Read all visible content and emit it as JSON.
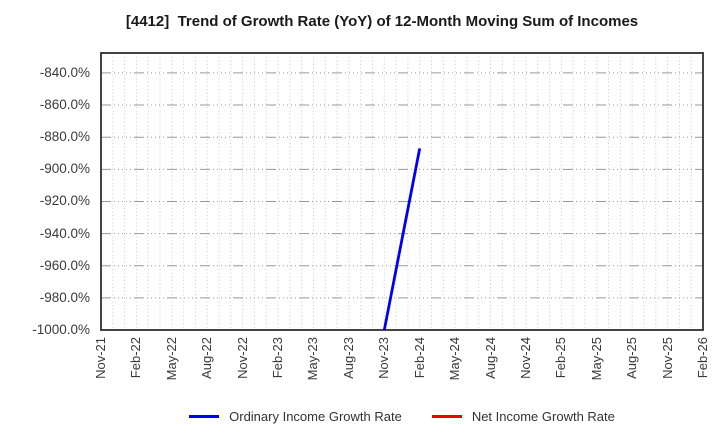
{
  "title": "[4412]  Trend of Growth Rate (YoY) of 12-Month Moving Sum of Incomes",
  "chart_data": {
    "type": "line",
    "title": "[4412]  Trend of Growth Rate (YoY) of 12-Month Moving Sum of Incomes",
    "xlabel": "",
    "ylabel": "",
    "x_range": [
      "Nov-21",
      "Feb-26"
    ],
    "x_ticks": [
      "Nov-21",
      "Feb-22",
      "May-22",
      "Aug-22",
      "Nov-22",
      "Feb-23",
      "May-23",
      "Aug-23",
      "Nov-23",
      "Feb-24",
      "May-24",
      "Aug-24",
      "Nov-24",
      "Feb-25",
      "May-25",
      "Aug-25",
      "Nov-25",
      "Feb-26"
    ],
    "x_minor_grid_interval_months": 1,
    "y_ticks": [
      -840,
      -860,
      -880,
      -900,
      -920,
      -940,
      -960,
      -980,
      -1000
    ],
    "y_tick_labels": [
      "-840.0%",
      "-860.0%",
      "-880.0%",
      "-900.0%",
      "-920.0%",
      "-940.0%",
      "-960.0%",
      "-980.0%",
      "-1000.0%"
    ],
    "ylim": [
      -1000.0,
      -827.6
    ],
    "grid": true,
    "legend_position": "bottom",
    "series": [
      {
        "name": "Ordinary Income Growth Rate",
        "color": "#0000ee",
        "points": [
          {
            "month": "Nov-23",
            "value": -1000.0
          },
          {
            "month": "Feb-24",
            "value": -887.0
          }
        ]
      },
      {
        "name": "Net Income Growth Rate",
        "color": "#ee0000",
        "points": []
      }
    ]
  },
  "legend": {
    "items": [
      {
        "label": "Ordinary Income Growth Rate",
        "color": "#0000ee"
      },
      {
        "label": "Net Income Growth Rate",
        "color": "#ee0000"
      }
    ]
  },
  "colors": {
    "background": "#ffffff",
    "title_text": "#1a1a1a",
    "tick_text": "#3a3a3a",
    "axis_border": "#2f2f2f",
    "grid_major_h": "#999999",
    "grid_minor_v": "#c9c9c9"
  }
}
